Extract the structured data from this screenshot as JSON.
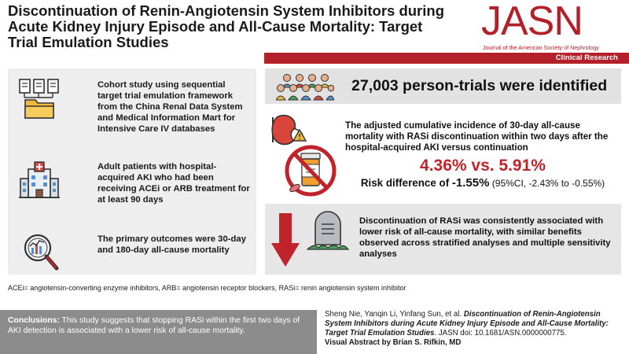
{
  "title": "Discontinuation of Renin-Angiotensin System Inhibitors during Acute Kidney Injury Episode and All-Cause Mortality: Target Trial Emulation Studies",
  "journal": {
    "logo": "JASN",
    "subtitle": "Journal of the American Society of Nephrology",
    "category": "Clinical Research"
  },
  "left": [
    {
      "icon": "documents-folder-icon",
      "text": "Cohort study using sequential target trial emulation framework from the China Renal Data System and Medical Information Mart for Intensive Care IV databases"
    },
    {
      "icon": "hospital-icon",
      "text": "Adult patients with hospital-acquired AKI who had been receiving ACEi or ARB treatment for at least 90 days"
    },
    {
      "icon": "magnifier-chart-icon",
      "text": "The primary outcomes were 30-day and 180-day all-cause mortality"
    }
  ],
  "results": {
    "count_text": "27,003 person-trials were identified",
    "incidence_text": "The adjusted cumulative incidence of 30-day all-cause mortality with RASi discontinuation within two days after the hospital-acquired AKI versus continuation",
    "pct_text": "4.36% vs. 5.91%",
    "risk_label": "Risk difference of ",
    "risk_value": "-1.55%",
    "risk_ci": " (95%CI, -2.43% to -0.55%)",
    "conclusion_text": "Discontinuation of RASi was consistently associated with lower risk of all-cause mortality, with similar benefits observed across stratified analyses and multiple sensitivity analyses"
  },
  "abbreviations": "ACEi= angiotensin-converting enzyme inhibitors, ARB= angiotensin receptor blockers, RASi= renin angiotensin system inhibitor",
  "conclusions": {
    "label": "Conclusions:",
    "text": " This study suggests that stopping RASi within the first two days of AKI detection is associated with a lower risk of all-cause mortality."
  },
  "citation": {
    "authors": "Sheng Nie, Yanqin Li, Yinfang Sun, et al. ",
    "paper_title": "Discontinuation of Renin-Angiotensin System Inhibitors during Acute Kidney Injury Episode and All-Cause Mortality: Target Trial Emulation Studies",
    "doi": ". JASN doi: 10.1681/ASN.0000000775.",
    "visual_abstract": "Visual Abstract by Brian S. Rifkin, MD"
  },
  "colors": {
    "brand_red": "#b4202a",
    "accent_red": "#c0232a",
    "panel_gray": "#eeeeee",
    "conclusion_gray": "#8c8c8c"
  }
}
